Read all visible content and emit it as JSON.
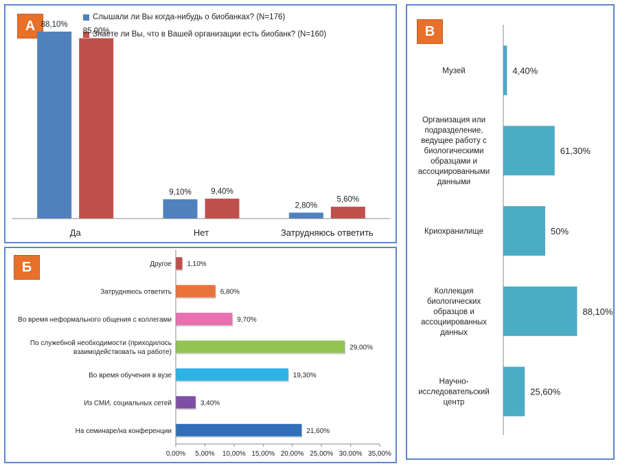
{
  "colors": {
    "panel_border": "#5b86c4",
    "badge": "#e8702a",
    "series_blue": "#4f81bd",
    "series_red": "#c0504d",
    "teal": "#4bacc6"
  },
  "chart_data": [
    {
      "id": "A",
      "type": "bar",
      "badge": "А",
      "categories": [
        "Да",
        "Нет",
        "Затрудняюсь ответить"
      ],
      "series": [
        {
          "name": "Слышали ли Вы когда-нибудь о биобанках? (N=176)",
          "color": "#4f81bd",
          "values": [
            88.1,
            9.1,
            2.8
          ],
          "labels": [
            "88,10%",
            "9,10%",
            "2,80%"
          ]
        },
        {
          "name": "Знаете ли Вы, что в Вашей организации есть биобанк? (N=160)",
          "color": "#c0504d",
          "values": [
            85.0,
            9.4,
            5.6
          ],
          "labels": [
            "85,00%",
            "9,40%",
            "5,60%"
          ]
        }
      ],
      "ylim": [
        0,
        100
      ],
      "grid": false,
      "legend_position": "top"
    },
    {
      "id": "B",
      "type": "bar",
      "orientation": "horizontal",
      "badge": "Б",
      "categories": [
        "Другое",
        "Затрудняюсь ответить",
        "Во время неформального общения с коллегами",
        "По служебной необходимости (приходилось взаимодействовать на работе)",
        "Во время обучения в вузе",
        "Из СМИ, социальных сетей",
        "На семинаре/на конференции"
      ],
      "category_lines": [
        [
          "Другое"
        ],
        [
          "Затрудняюсь ответить"
        ],
        [
          "Во время неформального общения с коллегами"
        ],
        [
          "По служебной необходимости (приходилось",
          "взаимодействовать на работе)"
        ],
        [
          "Во время обучения в вузе"
        ],
        [
          "Из СМИ, социальных сетей"
        ],
        [
          "На семинаре/на конференции"
        ]
      ],
      "values": [
        1.1,
        6.8,
        9.7,
        29.0,
        19.3,
        3.4,
        21.6
      ],
      "labels": [
        "1,10%",
        "6,80%",
        "9,70%",
        "29,00%",
        "19,30%",
        "3,40%",
        "21,60%"
      ],
      "bar_colors": [
        "#c0504d",
        "#e8743b",
        "#e86fb0",
        "#92c353",
        "#2fb3e6",
        "#7e4fa4",
        "#2f6fb8"
      ],
      "xlim": [
        0,
        35
      ],
      "x_ticks": [
        "0,00%",
        "5,00%",
        "10,00%",
        "15,00%",
        "20,00%",
        "25,00%",
        "30,00%",
        "35,00%"
      ],
      "grid": false
    },
    {
      "id": "C",
      "type": "bar",
      "orientation": "horizontal",
      "badge": "В",
      "categories": [
        "Музей",
        "Организация или подразделение, ведущее работу с биологическими образцами и ассоциированными данными",
        "Криохранилище",
        "Коллекция биологических образцов и ассоциированных данных",
        "Научно-исследовательский центр"
      ],
      "category_lines": [
        [
          "Музей"
        ],
        [
          "Организация или",
          "подразделение,",
          "ведущее работу с",
          "биологическими",
          "образцами и",
          "ассоциированными",
          "данными"
        ],
        [
          "Криохранилище"
        ],
        [
          "Коллекция",
          "биологических",
          "образцов и",
          "ассоциированных",
          "данных"
        ],
        [
          "Научно-",
          "исследовательский",
          "центр"
        ]
      ],
      "values": [
        4.4,
        61.3,
        50,
        88.1,
        25.6
      ],
      "labels": [
        "4,40%",
        "61,30%",
        "50%",
        "88,10%",
        "25,60%"
      ],
      "bar_color": "#4bacc6",
      "xlim": [
        0,
        100
      ],
      "grid": false
    }
  ]
}
